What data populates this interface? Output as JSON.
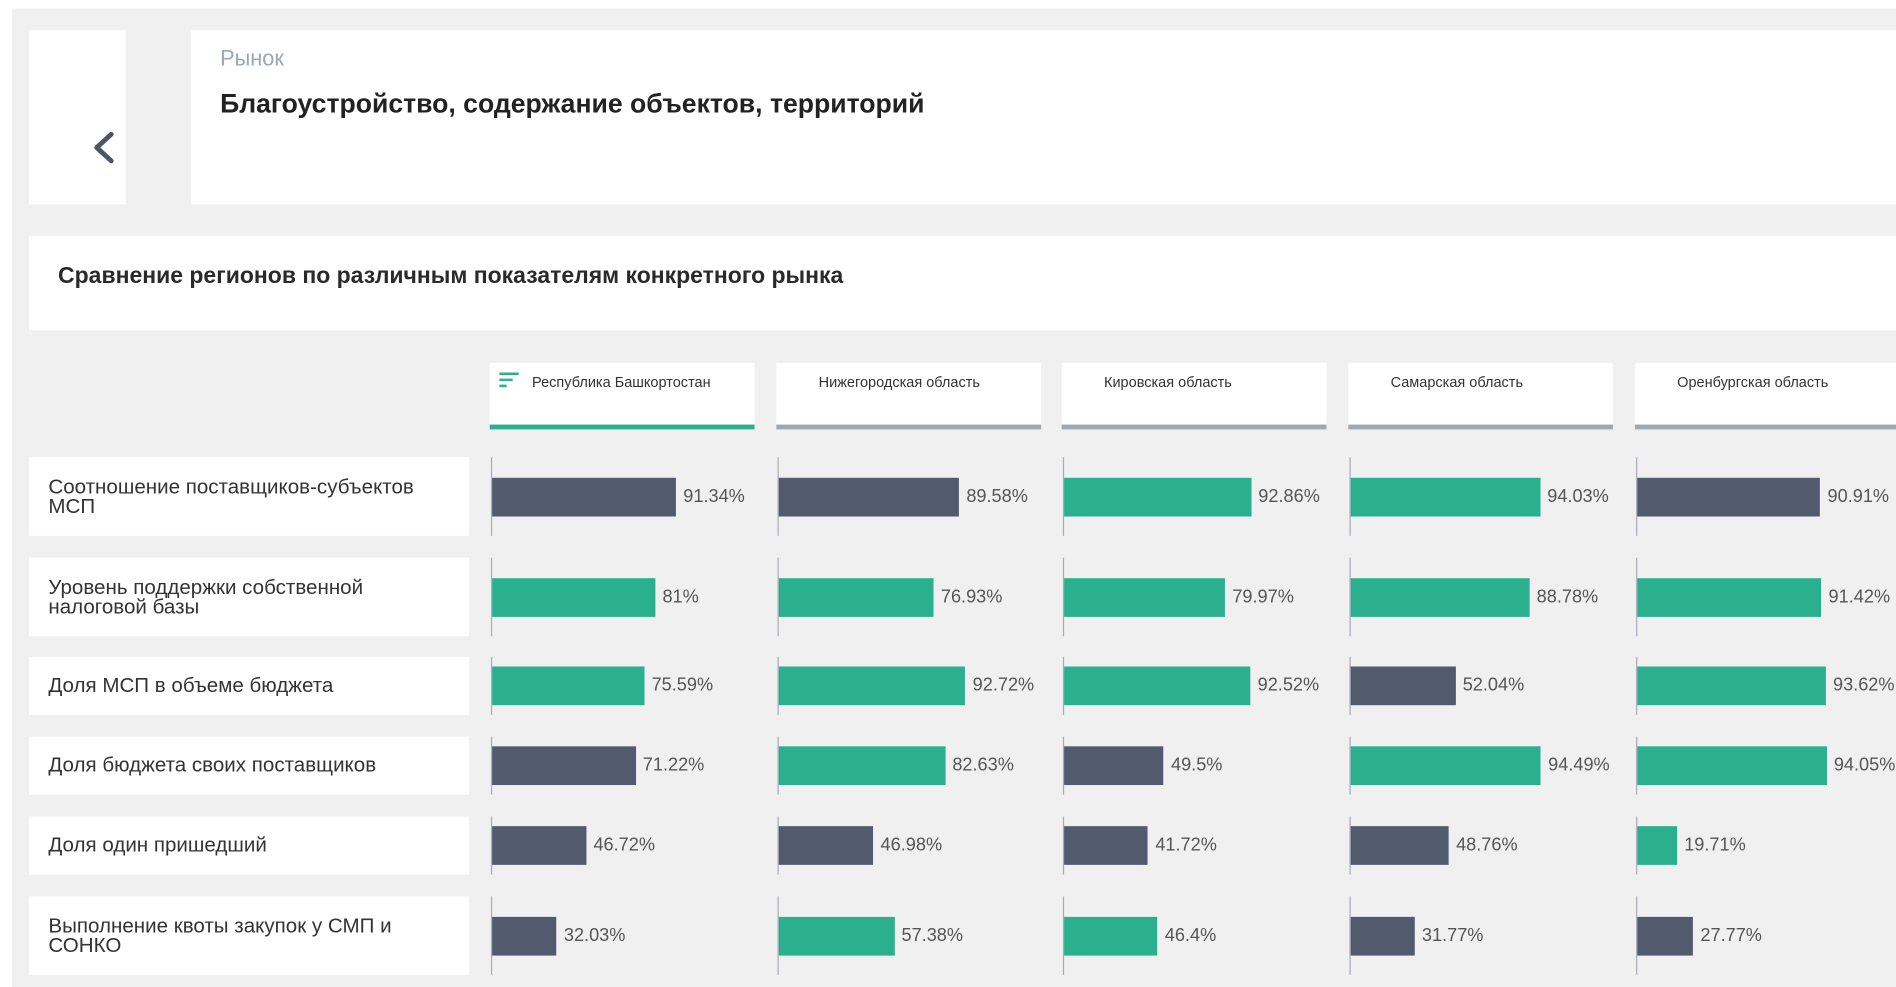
{
  "header": {
    "category": "Рынок",
    "title": "Благоустройство, содержание объектов, территорий"
  },
  "panel": {
    "title": "Сравнение регионов по различным показателям конкретного рынка"
  },
  "columns": [
    {
      "name": "Республика Башкортостан",
      "sorted": true
    },
    {
      "name": "Нижегородская область",
      "sorted": false
    },
    {
      "name": "Кировская область",
      "sorted": false
    },
    {
      "name": "Самарская область",
      "sorted": false
    },
    {
      "name": "Оренбургская область",
      "sorted": false
    }
  ],
  "rows": [
    {
      "label": "Соотношение поставщиков-субъектов МСП",
      "values": [
        91.34,
        89.58,
        92.86,
        94.03,
        90.91
      ],
      "value_labels": [
        "91.34%",
        "89.58%",
        "92.86%",
        "94.03%",
        "90.91%"
      ],
      "colors": [
        "#525a6e",
        "#525a6e",
        "#2bb08e",
        "#2bb08e",
        "#525a6e"
      ]
    },
    {
      "label": "Уровень поддержки собственной налоговой базы",
      "values": [
        81,
        76.93,
        79.97,
        88.78,
        91.42
      ],
      "value_labels": [
        "81%",
        "76.93%",
        "79.97%",
        "88.78%",
        "91.42%"
      ],
      "colors": [
        "#2bb08e",
        "#2bb08e",
        "#2bb08e",
        "#2bb08e",
        "#2bb08e"
      ]
    },
    {
      "label": "Доля МСП в объеме бюджета",
      "values": [
        75.59,
        92.72,
        92.52,
        52.04,
        93.62
      ],
      "value_labels": [
        "75.59%",
        "92.72%",
        "92.52%",
        "52.04%",
        "93.62%"
      ],
      "colors": [
        "#2bb08e",
        "#2bb08e",
        "#2bb08e",
        "#525a6e",
        "#2bb08e"
      ]
    },
    {
      "label": "Доля бюджета своих поставщиков",
      "values": [
        71.22,
        82.63,
        49.5,
        94.49,
        94.05
      ],
      "value_labels": [
        "71.22%",
        "82.63%",
        "49.5%",
        "94.49%",
        "94.05%"
      ],
      "colors": [
        "#525a6e",
        "#2bb08e",
        "#525a6e",
        "#2bb08e",
        "#2bb08e"
      ]
    },
    {
      "label": "Доля один пришедший",
      "values": [
        46.72,
        46.98,
        41.72,
        48.76,
        19.71
      ],
      "value_labels": [
        "46.72%",
        "46.98%",
        "41.72%",
        "48.76%",
        "19.71%"
      ],
      "colors": [
        "#525a6e",
        "#525a6e",
        "#525a6e",
        "#525a6e",
        "#2bb08e"
      ]
    },
    {
      "label": "Выполнение квоты закупок у СМП и СОНКО",
      "values": [
        32.03,
        57.38,
        46.4,
        31.77,
        27.77
      ],
      "value_labels": [
        "32.03%",
        "57.38%",
        "46.4%",
        "31.77%",
        "27.77%"
      ],
      "colors": [
        "#525a6e",
        "#2bb08e",
        "#2bb08e",
        "#525a6e",
        "#525a6e"
      ]
    }
  ]
}
